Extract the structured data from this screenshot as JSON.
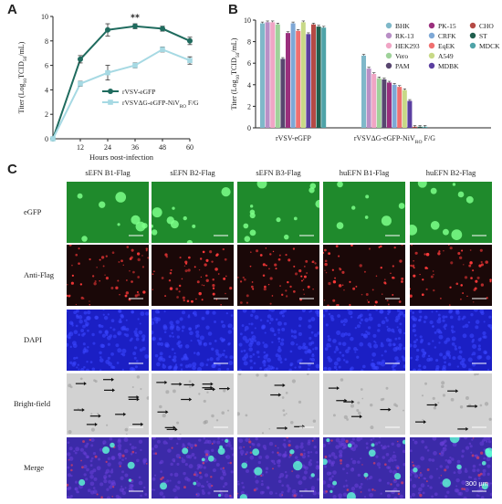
{
  "panels": {
    "a": {
      "letter": "A"
    },
    "b": {
      "letter": "B"
    },
    "c": {
      "letter": "C"
    }
  },
  "chart_data": [
    {
      "type": "line",
      "panel": "A",
      "ylabel_parts": [
        "Titer (Log",
        "10",
        "TCID",
        "50",
        "/mL)"
      ],
      "xlabel": "Hours post-infection",
      "x": [
        0,
        12,
        24,
        36,
        48,
        60
      ],
      "xticks": [
        "12",
        "24",
        "36",
        "48",
        "60"
      ],
      "ylim": [
        0,
        10
      ],
      "yticks": [
        "0",
        "2",
        "4",
        "6",
        "8",
        "10"
      ],
      "annotation": "**",
      "series": [
        {
          "name": "rVSV-eGFP",
          "color": "#1f6b5e",
          "marker": "circle",
          "values": [
            0,
            6.5,
            8.9,
            9.2,
            9.0,
            8.0
          ],
          "errors": [
            0,
            0.3,
            0.5,
            0.2,
            0.2,
            0.3
          ]
        },
        {
          "name_parts": [
            "rVSVΔG-eGFP-NiV",
            "RO",
            " F/G"
          ],
          "color": "#a6d9e3",
          "marker": "square",
          "values": [
            0,
            4.5,
            5.4,
            6.0,
            7.3,
            6.4
          ],
          "errors": [
            0,
            0.2,
            0.6,
            0.2,
            0.2,
            0.3
          ]
        }
      ]
    },
    {
      "type": "bar",
      "panel": "B",
      "ylabel_parts": [
        "Titer (Log",
        "10",
        "TCID",
        "50",
        "/mL)"
      ],
      "ylim": [
        0,
        10
      ],
      "yticks": [
        "0",
        "2",
        "4",
        "6",
        "8",
        "10"
      ],
      "groups": [
        {
          "label": "rVSV-eGFP"
        },
        {
          "label_parts": [
            "rVSVΔG-eGFP-NiV",
            "RO",
            " F/G"
          ]
        }
      ],
      "series": [
        {
          "name": "BHK",
          "color": "#7fb8c9",
          "values": [
            9.7,
            6.7
          ]
        },
        {
          "name": "RK-13",
          "color": "#b98fc6",
          "values": [
            9.8,
            5.5
          ]
        },
        {
          "name": "HEK293",
          "color": "#f0a5c5",
          "values": [
            9.8,
            5.0
          ]
        },
        {
          "name": "Vero",
          "color": "#9fd29a",
          "values": [
            9.6,
            4.6
          ]
        },
        {
          "name": "PAM",
          "color": "#58466f",
          "values": [
            6.4,
            4.5
          ]
        },
        {
          "name": "PK-15",
          "color": "#9a2f7d",
          "values": [
            8.8,
            4.2
          ]
        },
        {
          "name": "CRFK",
          "color": "#7ea8d6",
          "values": [
            9.7,
            4.0
          ]
        },
        {
          "name": "EqEK",
          "color": "#f07070",
          "values": [
            9.0,
            3.8
          ]
        },
        {
          "name": "A549",
          "color": "#c8d987",
          "values": [
            9.8,
            3.5
          ]
        },
        {
          "name": "MDBK",
          "color": "#5b3fa0",
          "values": [
            8.7,
            2.5
          ]
        },
        {
          "name": "CHO",
          "color": "#b54a45",
          "values": [
            9.6,
            0
          ]
        },
        {
          "name": "ST",
          "color": "#1f5e4d",
          "values": [
            9.4,
            0
          ]
        },
        {
          "name": "MDCK",
          "color": "#4fa3a8",
          "values": [
            9.3,
            0
          ]
        }
      ]
    }
  ],
  "micrograph_grid": {
    "columns": [
      "sEFN B1-Flag",
      "sEFN B2-Flag",
      "sEFN B3-Flag",
      "huEFN B1-Flag",
      "huEFN B2-Flag"
    ],
    "rows": [
      "eGFP",
      "Anti-Flag",
      "DAPI",
      "Bright-field",
      "Merge"
    ],
    "scale_bar_label": "300 μm"
  }
}
